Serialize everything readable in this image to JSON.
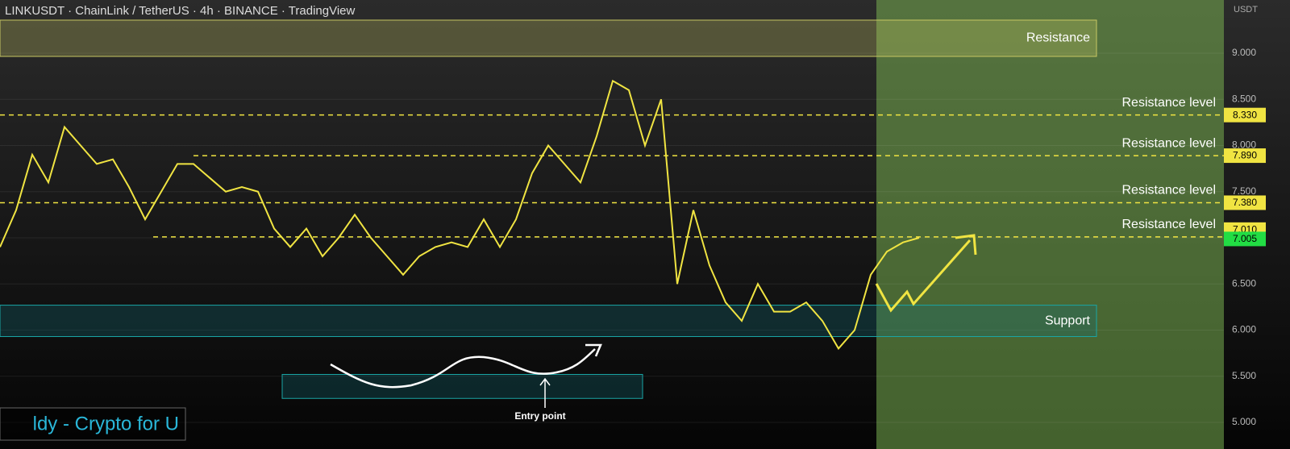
{
  "chart_data": {
    "type": "line",
    "title": "LINKUSDT · ChainLink / TetherUS · 4h · BINANCE · TradingView",
    "unit": "USDT",
    "watermark": "ldy - Crypto for U",
    "values": [
      6.9,
      7.3,
      7.9,
      7.6,
      8.2,
      8.0,
      7.8,
      7.85,
      7.55,
      7.2,
      7.5,
      7.8,
      7.8,
      7.65,
      7.5,
      7.55,
      7.5,
      7.1,
      6.9,
      7.1,
      6.8,
      7.0,
      7.25,
      7.0,
      6.8,
      6.6,
      6.8,
      6.9,
      6.95,
      6.9,
      7.2,
      6.9,
      7.2,
      7.7,
      8.0,
      7.8,
      7.6,
      8.1,
      8.7,
      8.6,
      8.0,
      8.5,
      6.5,
      7.3,
      6.7,
      6.3,
      6.1,
      6.5,
      6.2,
      6.2,
      6.3,
      6.1,
      5.8,
      6.0,
      6.6,
      6.85,
      6.95,
      7.0
    ],
    "color": "#f0e442",
    "ylim": [
      4.712,
      9.576
    ],
    "yticks": [
      {
        "value": 5,
        "label": "5.000"
      },
      {
        "value": 5.5,
        "label": "5.500"
      },
      {
        "value": 6,
        "label": "6.000"
      },
      {
        "value": 6.5,
        "label": "6.500"
      },
      {
        "value": 7,
        "label": "7.000"
      },
      {
        "value": 7.5,
        "label": "7.500"
      },
      {
        "value": 8,
        "label": "8.000"
      },
      {
        "value": 8.5,
        "label": "8.500"
      },
      {
        "value": 9,
        "label": "9.000"
      }
    ],
    "grid": true,
    "zones": [
      {
        "label": "Resistance",
        "low": 8.965,
        "high": 9.358,
        "color": "#c8c864"
      },
      {
        "label": "Support",
        "low": 5.93,
        "high": 6.27,
        "color": "#1aa6a6"
      },
      {
        "label": "Entry point",
        "low": 5.26,
        "high": 5.52,
        "color": "#1aa6a6"
      }
    ],
    "levels": [
      {
        "value": 8.33,
        "label": "8.330",
        "text": "Resistance level"
      },
      {
        "value": 7.89,
        "label": "7.890",
        "text": "Resistance level"
      },
      {
        "value": 7.38,
        "label": "7.380",
        "text": "Resistance level"
      },
      {
        "value": 7.01,
        "label": "7.010",
        "text": "Resistance level"
      }
    ],
    "current_price": {
      "value": 7.005,
      "label": "7.005",
      "color": "#22dd44"
    }
  }
}
